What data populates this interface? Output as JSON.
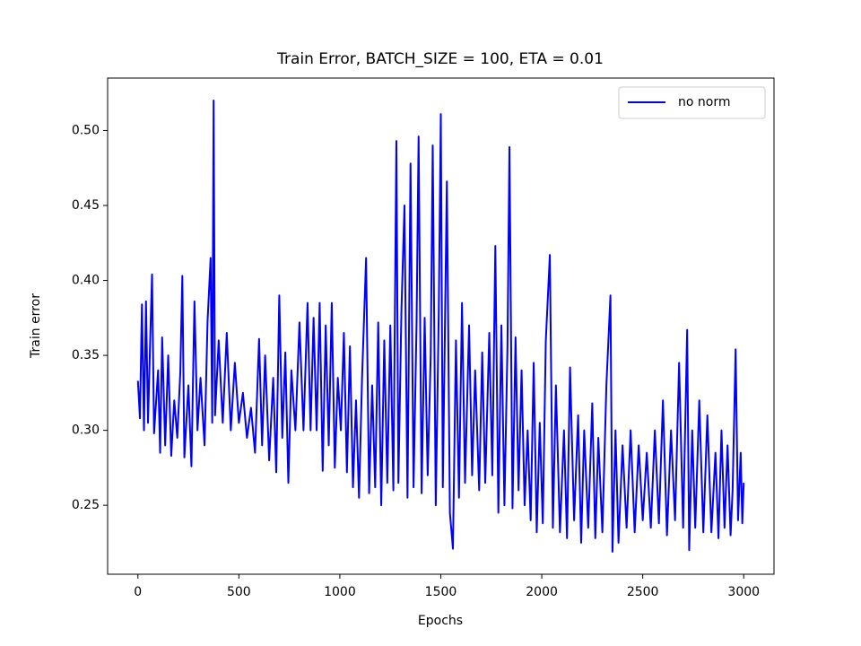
{
  "chart_data": {
    "type": "line",
    "title": "Train Error, BATCH_SIZE = 100, ETA = 0.01",
    "xlabel": "Epochs",
    "ylabel": "Train error",
    "x": [
      0,
      10,
      20,
      30,
      40,
      50,
      60,
      70,
      80,
      100,
      110,
      120,
      135,
      150,
      165,
      180,
      195,
      210,
      220,
      230,
      250,
      265,
      280,
      295,
      310,
      330,
      345,
      360,
      368,
      375,
      382,
      400,
      420,
      440,
      460,
      480,
      500,
      520,
      540,
      560,
      580,
      600,
      615,
      630,
      650,
      670,
      685,
      700,
      715,
      730,
      745,
      760,
      780,
      800,
      820,
      840,
      855,
      870,
      885,
      900,
      915,
      930,
      945,
      960,
      975,
      990,
      1005,
      1020,
      1035,
      1050,
      1065,
      1080,
      1095,
      1110,
      1130,
      1145,
      1160,
      1175,
      1190,
      1205,
      1220,
      1235,
      1250,
      1265,
      1280,
      1290,
      1305,
      1320,
      1335,
      1350,
      1365,
      1380,
      1390,
      1405,
      1420,
      1435,
      1450,
      1460,
      1475,
      1490,
      1500,
      1510,
      1530,
      1545,
      1560,
      1575,
      1590,
      1605,
      1620,
      1640,
      1655,
      1670,
      1690,
      1705,
      1720,
      1740,
      1755,
      1770,
      1785,
      1800,
      1815,
      1830,
      1840,
      1855,
      1870,
      1885,
      1900,
      1915,
      1930,
      1945,
      1960,
      1975,
      1990,
      2005,
      2020,
      2040,
      2055,
      2070,
      2090,
      2110,
      2125,
      2140,
      2160,
      2180,
      2195,
      2210,
      2230,
      2250,
      2265,
      2280,
      2300,
      2320,
      2340,
      2350,
      2365,
      2380,
      2400,
      2420,
      2440,
      2460,
      2480,
      2500,
      2520,
      2540,
      2560,
      2580,
      2600,
      2620,
      2640,
      2660,
      2680,
      2700,
      2720,
      2730,
      2745,
      2760,
      2780,
      2800,
      2820,
      2840,
      2860,
      2875,
      2890,
      2905,
      2920,
      2935,
      2945,
      2960,
      2972,
      2985,
      2993,
      3000
    ],
    "series": [
      {
        "name": "no norm",
        "color": "#0000ff",
        "values": [
          0.333,
          0.308,
          0.384,
          0.3,
          0.386,
          0.305,
          0.356,
          0.404,
          0.298,
          0.34,
          0.285,
          0.362,
          0.29,
          0.35,
          0.283,
          0.32,
          0.295,
          0.339,
          0.403,
          0.282,
          0.33,
          0.276,
          0.386,
          0.3,
          0.335,
          0.29,
          0.373,
          0.415,
          0.305,
          0.52,
          0.31,
          0.36,
          0.305,
          0.365,
          0.3,
          0.345,
          0.305,
          0.325,
          0.295,
          0.315,
          0.285,
          0.361,
          0.29,
          0.35,
          0.28,
          0.335,
          0.272,
          0.39,
          0.295,
          0.352,
          0.265,
          0.34,
          0.3,
          0.372,
          0.3,
          0.385,
          0.3,
          0.375,
          0.3,
          0.385,
          0.273,
          0.37,
          0.29,
          0.385,
          0.275,
          0.335,
          0.3,
          0.365,
          0.272,
          0.356,
          0.262,
          0.32,
          0.255,
          0.335,
          0.415,
          0.258,
          0.33,
          0.262,
          0.372,
          0.25,
          0.36,
          0.265,
          0.37,
          0.26,
          0.493,
          0.265,
          0.38,
          0.45,
          0.255,
          0.478,
          0.262,
          0.372,
          0.496,
          0.258,
          0.375,
          0.27,
          0.35,
          0.49,
          0.25,
          0.38,
          0.511,
          0.262,
          0.466,
          0.245,
          0.221,
          0.36,
          0.255,
          0.385,
          0.265,
          0.37,
          0.27,
          0.34,
          0.26,
          0.352,
          0.265,
          0.365,
          0.27,
          0.423,
          0.245,
          0.37,
          0.25,
          0.355,
          0.489,
          0.248,
          0.362,
          0.26,
          0.34,
          0.25,
          0.3,
          0.24,
          0.345,
          0.232,
          0.305,
          0.238,
          0.36,
          0.417,
          0.235,
          0.33,
          0.232,
          0.3,
          0.228,
          0.342,
          0.24,
          0.31,
          0.225,
          0.3,
          0.235,
          0.318,
          0.228,
          0.295,
          0.232,
          0.33,
          0.39,
          0.219,
          0.3,
          0.225,
          0.29,
          0.235,
          0.3,
          0.232,
          0.29,
          0.24,
          0.285,
          0.235,
          0.3,
          0.238,
          0.32,
          0.23,
          0.3,
          0.24,
          0.345,
          0.235,
          0.367,
          0.22,
          0.3,
          0.235,
          0.32,
          0.232,
          0.31,
          0.232,
          0.285,
          0.228,
          0.3,
          0.235,
          0.29,
          0.23,
          0.26,
          0.354,
          0.24,
          0.285,
          0.238,
          0.265
        ]
      }
    ],
    "xlim": [
      -150,
      3150
    ],
    "xticks": [
      0,
      500,
      1000,
      1500,
      2000,
      2500,
      3000
    ],
    "ylim": [
      0.204,
      0.535
    ],
    "yticks": [
      0.25,
      {
        "value": 0.3,
        "label": "0.30"
      },
      0.35,
      {
        "value": 0.4,
        "label": "0.40"
      },
      0.45,
      {
        "value": 0.5,
        "label": "0.50"
      }
    ],
    "legend": "upper right"
  }
}
